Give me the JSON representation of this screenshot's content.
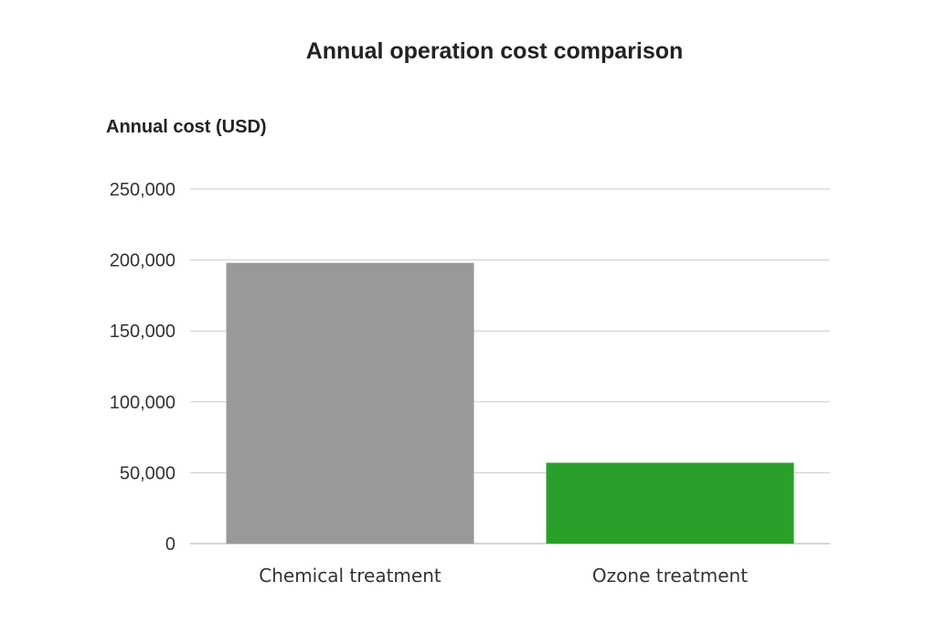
{
  "chart_data": {
    "type": "bar",
    "title": "Annual operation cost comparison",
    "ylabel": "Annual cost (USD)",
    "xlabel": "",
    "categories": [
      "Chemical treatment",
      "Ozone treatment"
    ],
    "values": [
      198000,
      57000
    ],
    "colors": [
      "#999999",
      "#2aa02a"
    ],
    "ylim": [
      0,
      250000
    ],
    "yticks": [
      0,
      50000,
      100000,
      150000,
      200000,
      250000
    ],
    "ytick_labels": [
      "0",
      "50,000",
      "100,000",
      "150,000",
      "200,000",
      "250,000"
    ],
    "grid": true,
    "legend": "none"
  }
}
